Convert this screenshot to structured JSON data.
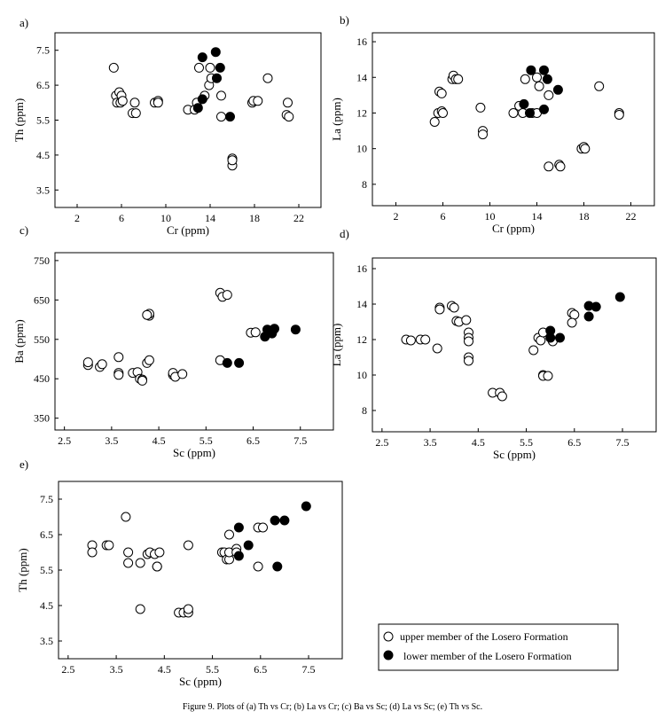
{
  "caption": "Figure 9. Plots of (a) Th vs Cr; (b) La vs Cr; (c) Ba vs Sc; (d) La vs Sc; (e) Th vs Sc.",
  "legend": {
    "upper": "upper member of the Losero Formation",
    "lower": "lower member of the Losero Formation"
  },
  "chart_data": [
    {
      "id": "a",
      "panel_label": "a)",
      "type": "scatter",
      "xlabel": "Cr (ppm)",
      "ylabel": "Th (ppm)",
      "xlim": [
        0,
        24
      ],
      "ylim": [
        3.0,
        8.0
      ],
      "xticks": [
        2,
        6,
        10,
        14,
        18,
        22
      ],
      "yticks": [
        3.5,
        4.5,
        5.5,
        6.5,
        7.5
      ],
      "xtick_labels": [
        "2",
        "6",
        "10",
        "14",
        "18",
        "22"
      ],
      "ytick_labels": [
        "3.5",
        "4.5",
        "5.5",
        "6.5",
        "7.5"
      ],
      "series": [
        {
          "name": "upper",
          "points": [
            [
              5.3,
              7.0
            ],
            [
              5.5,
              6.2
            ],
            [
              5.8,
              6.3
            ],
            [
              6.0,
              6.2
            ],
            [
              5.6,
              6.0
            ],
            [
              5.9,
              6.0
            ],
            [
              6.1,
              6.05
            ],
            [
              7.0,
              5.7
            ],
            [
              7.3,
              5.7
            ],
            [
              7.2,
              6.0
            ],
            [
              9.0,
              6.0
            ],
            [
              9.3,
              6.05
            ],
            [
              9.3,
              6.0
            ],
            [
              12.0,
              5.8
            ],
            [
              12.6,
              5.8
            ],
            [
              12.8,
              6.0
            ],
            [
              13.0,
              7.0
            ],
            [
              13.5,
              6.2
            ],
            [
              13.9,
              6.5
            ],
            [
              14.0,
              7.0
            ],
            [
              14.1,
              6.7
            ],
            [
              15.0,
              6.2
            ],
            [
              15.0,
              5.6
            ],
            [
              16.0,
              4.2
            ],
            [
              16.0,
              4.4
            ],
            [
              16.0,
              4.35
            ],
            [
              17.8,
              6.0
            ],
            [
              17.9,
              6.05
            ],
            [
              18.3,
              6.05
            ],
            [
              19.2,
              6.7
            ],
            [
              20.9,
              5.65
            ],
            [
              21.1,
              5.6
            ],
            [
              21.0,
              6.0
            ]
          ]
        },
        {
          "name": "lower",
          "points": [
            [
              12.9,
              5.85
            ],
            [
              13.3,
              6.1
            ],
            [
              13.3,
              7.3
            ],
            [
              14.5,
              7.45
            ],
            [
              14.6,
              6.7
            ],
            [
              14.9,
              7.0
            ],
            [
              15.8,
              5.6
            ]
          ]
        }
      ]
    },
    {
      "id": "b",
      "panel_label": "b)",
      "type": "scatter",
      "xlabel": "Cr (ppm)",
      "ylabel": "La (ppm)",
      "xlim": [
        0,
        24
      ],
      "ylim": [
        6.8,
        16.5
      ],
      "xticks": [
        2,
        6,
        10,
        14,
        18,
        22
      ],
      "yticks": [
        8,
        10,
        12,
        14,
        16
      ],
      "xtick_labels": [
        "2",
        "6",
        "10",
        "14",
        "18",
        "22"
      ],
      "ytick_labels": [
        "8",
        "10",
        "12",
        "14",
        "16"
      ],
      "series": [
        {
          "name": "upper",
          "points": [
            [
              5.3,
              11.5
            ],
            [
              5.6,
              12.0
            ],
            [
              5.9,
              12.1
            ],
            [
              6.0,
              12.0
            ],
            [
              5.7,
              13.2
            ],
            [
              5.9,
              13.1
            ],
            [
              6.8,
              13.9
            ],
            [
              6.9,
              14.1
            ],
            [
              7.1,
              13.9
            ],
            [
              7.3,
              13.9
            ],
            [
              9.2,
              12.3
            ],
            [
              9.4,
              11.0
            ],
            [
              9.4,
              10.8
            ],
            [
              12.0,
              12.0
            ],
            [
              12.5,
              12.4
            ],
            [
              12.8,
              12.0
            ],
            [
              13.0,
              13.9
            ],
            [
              13.6,
              12.0
            ],
            [
              14.0,
              14.0
            ],
            [
              14.2,
              13.5
            ],
            [
              14.0,
              12.0
            ],
            [
              15.0,
              13.0
            ],
            [
              15.0,
              9.0
            ],
            [
              15.9,
              9.1
            ],
            [
              16.0,
              9.0
            ],
            [
              17.8,
              10.0
            ],
            [
              18.0,
              10.1
            ],
            [
              18.1,
              10.0
            ],
            [
              19.3,
              13.5
            ],
            [
              21.0,
              12.0
            ],
            [
              21.0,
              11.9
            ]
          ]
        },
        {
          "name": "lower",
          "points": [
            [
              12.9,
              12.5
            ],
            [
              13.4,
              12.0
            ],
            [
              13.5,
              14.4
            ],
            [
              14.6,
              14.4
            ],
            [
              14.6,
              12.2
            ],
            [
              14.9,
              13.9
            ],
            [
              15.8,
              13.3
            ]
          ]
        }
      ]
    },
    {
      "id": "c",
      "panel_label": "c)",
      "type": "scatter",
      "xlabel": "Sc (ppm)",
      "ylabel": "Ba (ppm)",
      "xlim": [
        2.3,
        8.2
      ],
      "ylim": [
        320,
        770
      ],
      "xticks": [
        2.5,
        3.5,
        4.5,
        5.5,
        6.5,
        7.5
      ],
      "yticks": [
        350,
        450,
        550,
        650,
        750
      ],
      "xtick_labels": [
        "2.5",
        "3.5",
        "4.5",
        "5.5",
        "6.5",
        "7.5"
      ],
      "ytick_labels": [
        "350",
        "450",
        "550",
        "650",
        "750"
      ],
      "series": [
        {
          "name": "upper",
          "points": [
            [
              3.0,
              485
            ],
            [
              3.0,
              492
            ],
            [
              3.25,
              480
            ],
            [
              3.3,
              487
            ],
            [
              3.65,
              505
            ],
            [
              3.65,
              465
            ],
            [
              3.65,
              460
            ],
            [
              3.95,
              465
            ],
            [
              4.05,
              467
            ],
            [
              4.1,
              450
            ],
            [
              4.15,
              448
            ],
            [
              4.15,
              445
            ],
            [
              4.25,
              490
            ],
            [
              4.3,
              497
            ],
            [
              4.3,
              610
            ],
            [
              4.3,
              615
            ],
            [
              4.25,
              612
            ],
            [
              4.8,
              460
            ],
            [
              4.8,
              465
            ],
            [
              4.85,
              455
            ],
            [
              5.0,
              462
            ],
            [
              5.8,
              668
            ],
            [
              5.85,
              658
            ],
            [
              5.95,
              663
            ],
            [
              5.8,
              497
            ],
            [
              6.45,
              567
            ],
            [
              6.55,
              568
            ]
          ]
        },
        {
          "name": "lower",
          "points": [
            [
              5.95,
              490
            ],
            [
              6.2,
              490
            ],
            [
              6.75,
              557
            ],
            [
              6.8,
              575
            ],
            [
              6.9,
              565
            ],
            [
              6.95,
              577
            ],
            [
              7.4,
              575
            ]
          ]
        }
      ]
    },
    {
      "id": "d",
      "panel_label": "d)",
      "type": "scatter",
      "xlabel": "Sc (ppm)",
      "ylabel": "La (ppm)",
      "xlim": [
        2.3,
        8.2
      ],
      "ylim": [
        6.8,
        16.6
      ],
      "xticks": [
        2.5,
        3.5,
        4.5,
        5.5,
        6.5,
        7.5
      ],
      "yticks": [
        8,
        10,
        12,
        14,
        16
      ],
      "xtick_labels": [
        "2.5",
        "3.5",
        "4.5",
        "5.5",
        "6.5",
        "7.5"
      ],
      "ytick_labels": [
        "8",
        "10",
        "12",
        "14",
        "16"
      ],
      "series": [
        {
          "name": "upper",
          "points": [
            [
              3.0,
              12.0
            ],
            [
              3.1,
              11.95
            ],
            [
              3.3,
              12.0
            ],
            [
              3.4,
              12.0
            ],
            [
              3.65,
              11.5
            ],
            [
              3.7,
              13.8
            ],
            [
              3.7,
              13.7
            ],
            [
              3.95,
              13.9
            ],
            [
              4.0,
              13.8
            ],
            [
              4.05,
              13.05
            ],
            [
              4.1,
              13.0
            ],
            [
              4.25,
              13.1
            ],
            [
              4.3,
              12.4
            ],
            [
              4.3,
              12.1
            ],
            [
              4.3,
              11.9
            ],
            [
              4.3,
              11.0
            ],
            [
              4.3,
              10.8
            ],
            [
              4.8,
              9.0
            ],
            [
              4.95,
              9.0
            ],
            [
              5.0,
              8.8
            ],
            [
              5.65,
              11.4
            ],
            [
              5.75,
              12.1
            ],
            [
              5.8,
              11.95
            ],
            [
              5.85,
              12.4
            ],
            [
              5.85,
              10.0
            ],
            [
              5.85,
              9.95
            ],
            [
              5.95,
              9.95
            ],
            [
              6.05,
              11.9
            ],
            [
              6.45,
              13.5
            ],
            [
              6.5,
              13.4
            ],
            [
              6.45,
              12.95
            ]
          ]
        },
        {
          "name": "lower",
          "points": [
            [
              6.0,
              12.5
            ],
            [
              6.0,
              12.1
            ],
            [
              6.2,
              12.1
            ],
            [
              6.8,
              13.9
            ],
            [
              6.8,
              13.3
            ],
            [
              6.95,
              13.85
            ],
            [
              7.45,
              14.4
            ]
          ]
        }
      ]
    },
    {
      "id": "e",
      "panel_label": "e)",
      "type": "scatter",
      "xlabel": "Sc (ppm)",
      "ylabel": "Th (ppm)",
      "xlim": [
        2.3,
        8.2
      ],
      "ylim": [
        3.0,
        8.0
      ],
      "xticks": [
        2.5,
        3.5,
        4.5,
        5.5,
        6.5,
        7.5
      ],
      "yticks": [
        3.5,
        4.5,
        5.5,
        6.5,
        7.5
      ],
      "xtick_labels": [
        "2.5",
        "3.5",
        "4.5",
        "5.5",
        "6.5",
        "7.5"
      ],
      "ytick_labels": [
        "3.5",
        "4.5",
        "5.5",
        "6.5",
        "7.5"
      ],
      "series": [
        {
          "name": "upper",
          "points": [
            [
              3.0,
              6.2
            ],
            [
              3.0,
              6.0
            ],
            [
              3.3,
              6.2
            ],
            [
              3.35,
              6.2
            ],
            [
              3.7,
              7.0
            ],
            [
              3.75,
              6.0
            ],
            [
              3.75,
              5.7
            ],
            [
              4.0,
              5.7
            ],
            [
              4.0,
              4.4
            ],
            [
              4.15,
              5.95
            ],
            [
              4.2,
              6.0
            ],
            [
              4.3,
              5.95
            ],
            [
              4.35,
              5.6
            ],
            [
              4.35,
              5.6
            ],
            [
              4.4,
              6.0
            ],
            [
              4.8,
              4.3
            ],
            [
              4.9,
              4.3
            ],
            [
              5.0,
              4.3
            ],
            [
              5.0,
              4.4
            ],
            [
              5.0,
              6.2
            ],
            [
              5.7,
              6.0
            ],
            [
              5.75,
              6.0
            ],
            [
              5.8,
              5.8
            ],
            [
              5.85,
              5.8
            ],
            [
              5.85,
              6.0
            ],
            [
              5.85,
              6.5
            ],
            [
              6.0,
              6.1
            ],
            [
              6.0,
              6.0
            ],
            [
              6.45,
              6.7
            ],
            [
              6.55,
              6.7
            ],
            [
              6.45,
              5.6
            ]
          ]
        },
        {
          "name": "lower",
          "points": [
            [
              6.05,
              6.7
            ],
            [
              6.05,
              5.9
            ],
            [
              6.25,
              6.2
            ],
            [
              6.8,
              6.9
            ],
            [
              6.85,
              5.6
            ],
            [
              7.0,
              6.9
            ],
            [
              7.45,
              7.3
            ]
          ]
        }
      ]
    }
  ]
}
